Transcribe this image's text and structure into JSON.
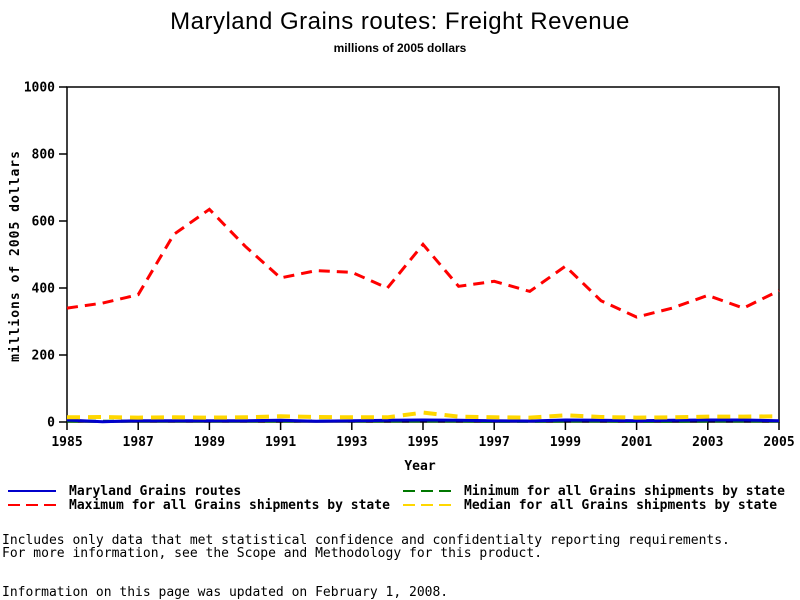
{
  "chart_data": {
    "type": "line",
    "title": "Maryland Grains routes: Freight Revenue",
    "subtitle": "millions of 2005 dollars",
    "xlabel": "Year",
    "ylabel": "millions of 2005 dollars",
    "xlim": [
      1985,
      2005
    ],
    "ylim": [
      0,
      1000
    ],
    "xticks": [
      1985,
      1987,
      1989,
      1991,
      1993,
      1995,
      1997,
      1999,
      2001,
      2003,
      2005
    ],
    "yticks": [
      0,
      200,
      400,
      600,
      800,
      1000
    ],
    "grid": false,
    "legend_position": "bottom",
    "x": [
      1985,
      1986,
      1987,
      1988,
      1989,
      1990,
      1991,
      1992,
      1993,
      1994,
      1995,
      1996,
      1997,
      1998,
      1999,
      2000,
      2001,
      2002,
      2003,
      2004,
      2005
    ],
    "series": [
      {
        "name": "Maryland Grains routes",
        "color": "#0000CC",
        "style": "solid",
        "width": 3,
        "values": [
          6,
          1,
          4,
          4,
          4,
          4,
          5,
          2,
          4,
          5,
          6,
          5,
          4,
          3,
          6,
          5,
          4,
          5,
          6,
          6,
          4
        ]
      },
      {
        "name": "Minimum for all Grains shipments by state",
        "color": "#007700",
        "style": "dashed",
        "width": 3,
        "values": [
          3,
          2,
          3,
          3,
          3,
          3,
          3,
          3,
          3,
          3,
          3,
          3,
          2,
          2,
          3,
          3,
          2,
          2,
          3,
          3,
          3
        ]
      },
      {
        "name": "Maximum for all Grains shipments by state",
        "color": "#FF0000",
        "style": "dashed",
        "width": 3,
        "values": [
          340,
          355,
          380,
          560,
          635,
          525,
          430,
          452,
          447,
          400,
          530,
          405,
          420,
          390,
          465,
          362,
          313,
          340,
          378,
          340,
          392
        ]
      },
      {
        "name": "Median for all Grains shipments by state",
        "color": "#FFD700",
        "style": "dashed",
        "width": 4,
        "values": [
          14,
          15,
          13,
          14,
          13,
          14,
          17,
          15,
          14,
          14,
          28,
          16,
          14,
          13,
          20,
          15,
          13,
          14,
          16,
          16,
          17
        ]
      }
    ],
    "draw_order": [
      1,
      0,
      2,
      3
    ],
    "legend_order": [
      0,
      2,
      1,
      3
    ]
  },
  "footer": {
    "line1": "Includes only data that met statistical confidence and confidentialty reporting requirements.",
    "line2": "For more information, see the Scope and Methodology for this product.",
    "updated": "Information on this page was updated on February 1, 2008."
  }
}
